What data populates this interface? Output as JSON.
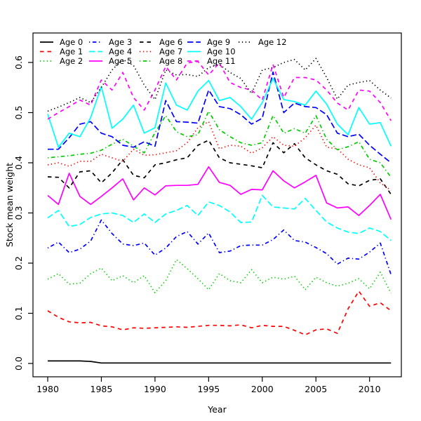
{
  "figure": {
    "background": "#ffffff",
    "frame_color": "#000000",
    "text_color": "#000000"
  },
  "chart_data": {
    "type": "line",
    "title": "",
    "xlabel": "Year",
    "ylabel": "Stock mean weight",
    "x_ticks": [
      1980,
      1985,
      1990,
      1995,
      2000,
      2005,
      2010
    ],
    "y_ticks": [
      "0.0",
      "0.1",
      "0.2",
      "0.3",
      "0.4",
      "0.5",
      "0.6"
    ],
    "xlim": [
      1978.7,
      2013.3
    ],
    "ylim": [
      -0.024,
      0.655
    ],
    "grid": false,
    "legend_position": "top-left",
    "legend_columns": 5,
    "x": [
      1980,
      1981,
      1982,
      1983,
      1984,
      1985,
      1986,
      1987,
      1988,
      1989,
      1990,
      1991,
      1992,
      1993,
      1994,
      1995,
      1996,
      1997,
      1998,
      1999,
      2000,
      2001,
      2002,
      2003,
      2004,
      2005,
      2006,
      2007,
      2008,
      2009,
      2010,
      2011,
      2012
    ],
    "series": [
      {
        "name": "Age 0",
        "color": "#000000",
        "linetype": "solid",
        "values": [
          0.005,
          0.005,
          0.005,
          0.005,
          0.004,
          0.001,
          0.001,
          0.001,
          0.001,
          0.001,
          0.001,
          0.001,
          0.001,
          0.001,
          0.001,
          0.001,
          0.001,
          0.001,
          0.001,
          0.001,
          0.001,
          0.001,
          0.001,
          0.001,
          0.001,
          0.001,
          0.001,
          0.001,
          0.001,
          0.001,
          0.001,
          0.001,
          0.001
        ]
      },
      {
        "name": "Age 1",
        "color": "#FF0000",
        "linetype": "dashed",
        "values": [
          0.105,
          0.092,
          0.083,
          0.081,
          0.082,
          0.075,
          0.073,
          0.067,
          0.071,
          0.07,
          0.071,
          0.072,
          0.073,
          0.072,
          0.074,
          0.076,
          0.076,
          0.075,
          0.077,
          0.071,
          0.076,
          0.074,
          0.074,
          0.066,
          0.057,
          0.067,
          0.069,
          0.06,
          0.109,
          0.144,
          0.114,
          0.121,
          0.105
        ]
      },
      {
        "name": "Age 2",
        "color": "#00CD00",
        "linetype": "dotted",
        "values": [
          0.168,
          0.179,
          0.158,
          0.16,
          0.179,
          0.19,
          0.165,
          0.175,
          0.161,
          0.175,
          0.141,
          0.165,
          0.207,
          0.189,
          0.169,
          0.147,
          0.179,
          0.165,
          0.161,
          0.187,
          0.161,
          0.172,
          0.168,
          0.174,
          0.147,
          0.172,
          0.161,
          0.154,
          0.16,
          0.169,
          0.149,
          0.182,
          0.14
        ]
      },
      {
        "name": "Age 3",
        "color": "#0000FF",
        "linetype": "dotdash",
        "values": [
          0.23,
          0.242,
          0.221,
          0.228,
          0.244,
          0.286,
          0.259,
          0.238,
          0.235,
          0.24,
          0.216,
          0.23,
          0.253,
          0.263,
          0.238,
          0.26,
          0.221,
          0.224,
          0.235,
          0.236,
          0.236,
          0.247,
          0.266,
          0.245,
          0.242,
          0.231,
          0.219,
          0.198,
          0.21,
          0.208,
          0.222,
          0.24,
          0.177
        ]
      },
      {
        "name": "Age 4",
        "color": "#00FFFF",
        "linetype": "longdash",
        "values": [
          0.29,
          0.305,
          0.273,
          0.277,
          0.291,
          0.298,
          0.3,
          0.295,
          0.281,
          0.298,
          0.281,
          0.298,
          0.305,
          0.315,
          0.295,
          0.322,
          0.315,
          0.302,
          0.281,
          0.282,
          0.335,
          0.312,
          0.31,
          0.308,
          0.329,
          0.305,
          0.282,
          0.27,
          0.262,
          0.259,
          0.27,
          0.263,
          0.245
        ]
      },
      {
        "name": "Age 5",
        "color": "#FF00FF",
        "linetype": "solid",
        "values": [
          0.335,
          0.317,
          0.379,
          0.333,
          0.317,
          0.333,
          0.35,
          0.368,
          0.326,
          0.35,
          0.336,
          0.354,
          0.355,
          0.355,
          0.357,
          0.392,
          0.361,
          0.355,
          0.337,
          0.347,
          0.346,
          0.384,
          0.364,
          0.35,
          0.362,
          0.375,
          0.32,
          0.31,
          0.312,
          0.295,
          0.315,
          0.337,
          0.287
        ]
      },
      {
        "name": "Age 6",
        "color": "#000000",
        "linetype": "dashed",
        "values": [
          0.372,
          0.371,
          0.35,
          0.382,
          0.384,
          0.36,
          0.38,
          0.406,
          0.375,
          0.37,
          0.396,
          0.4,
          0.406,
          0.41,
          0.435,
          0.445,
          0.41,
          0.4,
          0.397,
          0.394,
          0.39,
          0.44,
          0.42,
          0.438,
          0.41,
          0.396,
          0.384,
          0.377,
          0.358,
          0.354,
          0.365,
          0.368,
          0.337
        ]
      },
      {
        "name": "Age 7",
        "color": "#FF0000",
        "linetype": "dotted",
        "values": [
          0.396,
          0.4,
          0.393,
          0.403,
          0.403,
          0.417,
          0.41,
          0.403,
          0.427,
          0.415,
          0.416,
          0.42,
          0.424,
          0.44,
          0.47,
          0.482,
          0.428,
          0.435,
          0.433,
          0.419,
          0.43,
          0.452,
          0.435,
          0.433,
          0.45,
          0.475,
          0.431,
          0.428,
          0.407,
          0.396,
          0.39,
          0.36,
          0.345
        ]
      },
      {
        "name": "Age 8",
        "color": "#00CD00",
        "linetype": "dotdash",
        "values": [
          0.41,
          0.412,
          0.414,
          0.417,
          0.419,
          0.425,
          0.437,
          0.447,
          0.433,
          0.42,
          0.46,
          0.494,
          0.462,
          0.452,
          0.456,
          0.503,
          0.466,
          0.452,
          0.44,
          0.435,
          0.44,
          0.494,
          0.459,
          0.468,
          0.459,
          0.494,
          0.447,
          0.426,
          0.432,
          0.442,
          0.407,
          0.4,
          0.371
        ]
      },
      {
        "name": "Age 9",
        "color": "#0000FF",
        "linetype": "longdash",
        "values": [
          0.427,
          0.427,
          0.45,
          0.477,
          0.482,
          0.459,
          0.452,
          0.435,
          0.431,
          0.442,
          0.433,
          0.524,
          0.482,
          0.481,
          0.479,
          0.545,
          0.512,
          0.508,
          0.496,
          0.477,
          0.489,
          0.581,
          0.5,
          0.519,
          0.512,
          0.51,
          0.496,
          0.459,
          0.452,
          0.457,
          0.435,
          0.417,
          0.4
        ]
      },
      {
        "name": "Age 10",
        "color": "#00FFFF",
        "linetype": "solid",
        "values": [
          0.497,
          0.431,
          0.459,
          0.452,
          0.49,
          0.552,
          0.469,
          0.487,
          0.515,
          0.459,
          0.47,
          0.559,
          0.515,
          0.505,
          0.543,
          0.564,
          0.524,
          0.53,
          0.512,
          0.487,
          0.52,
          0.568,
          0.526,
          0.522,
          0.515,
          0.543,
          0.517,
          0.477,
          0.456,
          0.51,
          0.477,
          0.48,
          0.433
        ]
      },
      {
        "name": "Age 11",
        "color": "#FF00FF",
        "linetype": "dashed",
        "values": [
          0.487,
          0.5,
          0.512,
          0.525,
          0.515,
          0.565,
          0.545,
          0.58,
          0.53,
          0.505,
          0.545,
          0.592,
          0.565,
          0.599,
          0.602,
          0.575,
          0.599,
          0.56,
          0.55,
          0.545,
          0.525,
          0.596,
          0.53,
          0.57,
          0.57,
          0.565,
          0.545,
          0.519,
          0.505,
          0.545,
          0.543,
          0.52,
          0.484
        ]
      },
      {
        "name": "Age 12",
        "color": "#000000",
        "linetype": "dotted",
        "values": [
          0.503,
          0.511,
          0.52,
          0.53,
          0.52,
          0.55,
          0.585,
          0.606,
          0.594,
          0.555,
          0.526,
          0.585,
          0.575,
          0.576,
          0.572,
          0.59,
          0.596,
          0.58,
          0.568,
          0.538,
          0.585,
          0.59,
          0.6,
          0.606,
          0.585,
          0.608,
          0.57,
          0.527,
          0.555,
          0.56,
          0.564,
          0.545,
          0.529
        ]
      }
    ]
  }
}
